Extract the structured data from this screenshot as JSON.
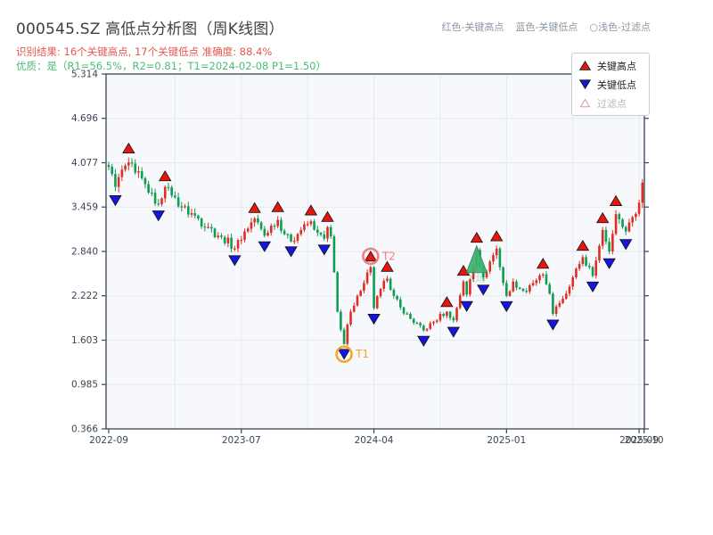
{
  "page": {
    "title": "000545.SZ 高低点分析图（周K线图）",
    "result_line": "识别结果: 16个关键高点, 17个关键低点  准确度: 88.4%",
    "quality_line": "优质：是（R1=56.5%，R2=0.81；T1=2024-02-08 P1=1.50）"
  },
  "header_legend": {
    "items": [
      "红色-关键高点",
      "蓝色-关键低点",
      "○浅色-过滤点"
    ]
  },
  "plot_legend": {
    "items": [
      {
        "label": "关键高点",
        "marker": "triangle-up",
        "color": "#e8150d"
      },
      {
        "label": "关键低点",
        "marker": "triangle-down",
        "color": "#1515dd"
      },
      {
        "label": "过滤点",
        "marker": "triangle-up-outline",
        "color": "#d49a9a"
      }
    ]
  },
  "chart_data": {
    "type": "candlestick",
    "title": "000545.SZ 高低点分析图（周K线图）",
    "ylabel": "",
    "xlabel": "",
    "y_ticks": [
      "5.314",
      "4.696",
      "4.077",
      "3.459",
      "2.840",
      "2.222",
      "1.603",
      "0.985",
      "0.366"
    ],
    "y_tick_values": [
      5.314,
      4.696,
      4.077,
      3.459,
      2.84,
      2.222,
      1.603,
      0.985,
      0.366
    ],
    "y_range": [
      0.366,
      5.314
    ],
    "weeks_total": 162,
    "grid_every_weeks": 20,
    "x_ticks": [
      {
        "week": 0,
        "label": "2022-09"
      },
      {
        "week": 40,
        "label": "2023-07"
      },
      {
        "week": 80,
        "label": "2024-04"
      },
      {
        "week": 120,
        "label": "2025-01"
      },
      {
        "week": 160,
        "label": "2025-09"
      },
      {
        "week": 161.5,
        "label": "2025-10"
      }
    ],
    "close_anchors": [
      [
        0,
        4.02
      ],
      [
        1,
        3.92
      ],
      [
        2,
        3.74
      ],
      [
        4,
        3.98
      ],
      [
        6,
        4.08
      ],
      [
        8,
        3.94
      ],
      [
        10,
        3.86
      ],
      [
        12,
        3.66
      ],
      [
        15,
        3.5
      ],
      [
        17,
        3.74
      ],
      [
        19,
        3.62
      ],
      [
        22,
        3.46
      ],
      [
        26,
        3.34
      ],
      [
        30,
        3.18
      ],
      [
        34,
        3.04
      ],
      [
        38,
        2.88
      ],
      [
        41,
        3.12
      ],
      [
        44,
        3.3
      ],
      [
        47,
        3.06
      ],
      [
        49,
        3.2
      ],
      [
        51,
        3.28
      ],
      [
        53,
        3.08
      ],
      [
        55,
        2.98
      ],
      [
        58,
        3.14
      ],
      [
        61,
        3.26
      ],
      [
        63,
        3.1
      ],
      [
        65,
        3.02
      ],
      [
        66,
        3.18
      ],
      [
        67,
        3.05
      ],
      [
        68,
        2.55
      ],
      [
        69,
        2.0
      ],
      [
        70,
        1.75
      ],
      [
        71,
        1.55
      ],
      [
        72,
        1.82
      ],
      [
        73,
        2.0
      ],
      [
        75,
        2.22
      ],
      [
        77,
        2.4
      ],
      [
        79,
        2.62
      ],
      [
        80,
        2.05
      ],
      [
        82,
        2.32
      ],
      [
        84,
        2.46
      ],
      [
        86,
        2.22
      ],
      [
        88,
        2.06
      ],
      [
        91,
        1.9
      ],
      [
        95,
        1.74
      ],
      [
        98,
        1.86
      ],
      [
        102,
        2.0
      ],
      [
        104,
        1.88
      ],
      [
        107,
        2.42
      ],
      [
        108,
        2.24
      ],
      [
        111,
        2.86
      ],
      [
        113,
        2.48
      ],
      [
        115,
        2.7
      ],
      [
        117,
        2.88
      ],
      [
        119,
        2.4
      ],
      [
        120,
        2.22
      ],
      [
        122,
        2.42
      ],
      [
        124,
        2.32
      ],
      [
        126,
        2.28
      ],
      [
        128,
        2.4
      ],
      [
        131,
        2.52
      ],
      [
        133,
        2.25
      ],
      [
        134,
        1.97
      ],
      [
        136,
        2.12
      ],
      [
        139,
        2.35
      ],
      [
        141,
        2.6
      ],
      [
        143,
        2.76
      ],
      [
        146,
        2.5
      ],
      [
        148,
        2.92
      ],
      [
        149,
        3.14
      ],
      [
        151,
        2.84
      ],
      [
        153,
        3.36
      ],
      [
        155,
        3.18
      ],
      [
        156,
        3.12
      ],
      [
        158,
        3.32
      ],
      [
        160,
        3.52
      ],
      [
        161,
        3.8
      ]
    ],
    "key_high_weeks": [
      6,
      17,
      44,
      51,
      61,
      66,
      79,
      84,
      102,
      107,
      111,
      117,
      131,
      143,
      149,
      153
    ],
    "key_low_weeks": [
      2,
      15,
      38,
      47,
      55,
      65,
      71,
      80,
      95,
      104,
      108,
      113,
      120,
      134,
      146,
      151,
      156
    ],
    "annotations": {
      "t1": {
        "week": 71,
        "label": "T1",
        "price": 1.5,
        "color": "#f5a623"
      },
      "t2": {
        "week": 79,
        "label": "T2",
        "color": "#f08080"
      },
      "entry": {
        "week": 111,
        "text": "入场",
        "color": "#34a873"
      }
    },
    "colors": {
      "up": "#dd2e24",
      "down": "#0e9d52",
      "key_high": "#e8150d",
      "key_low": "#1515dd",
      "marker_edge": "#111111",
      "grid": "#e5e9ef",
      "frame": "#3a4353",
      "plot_bg": "#f7f8fb",
      "tick_text": "#3b4554"
    },
    "stats": {
      "key_highs": 16,
      "key_lows": 17,
      "accuracy": "88.4%",
      "r1": "56.5%",
      "r2": "0.81",
      "t1_date": "2024-02-08",
      "p1": "1.50"
    },
    "legend_position": "upper-right",
    "grid": true
  }
}
